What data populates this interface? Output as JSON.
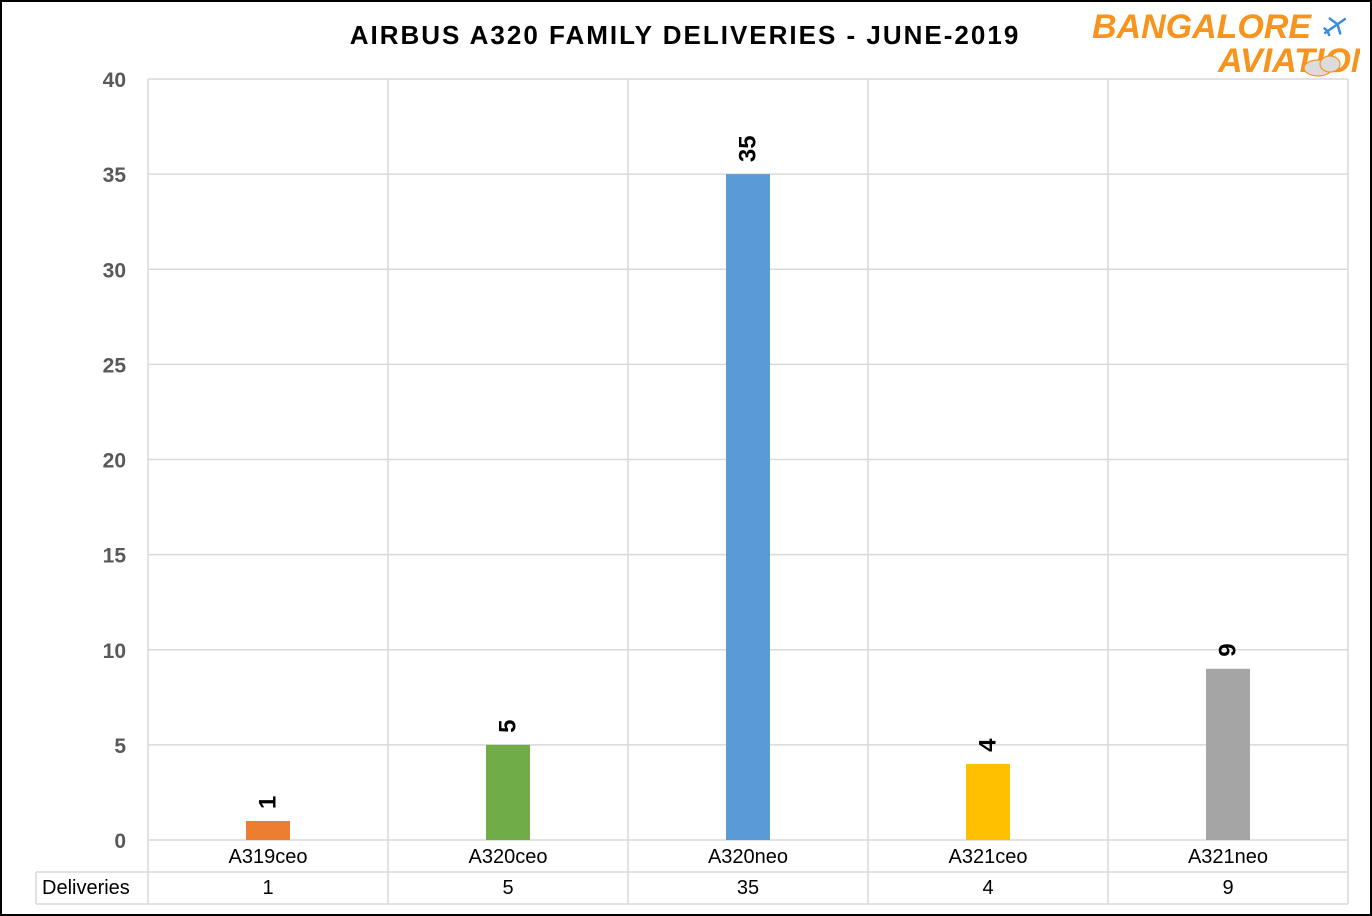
{
  "chart_data": {
    "type": "bar",
    "title": "AIRBUS A320 FAMILY DELIVERIES  - JUNE-2019",
    "categories": [
      "A319ceo",
      "A320ceo",
      "A320neo",
      "A321ceo",
      "A321neo"
    ],
    "values": [
      1,
      5,
      35,
      4,
      9
    ],
    "series_label": "Deliveries",
    "bar_colors": [
      "#ED7D31",
      "#70AD47",
      "#5B9BD5",
      "#FFC000",
      "#A5A5A5"
    ],
    "ylim": [
      0,
      40
    ],
    "yticks": [
      "0",
      "5",
      "10",
      "15",
      "20",
      "25",
      "30",
      "35",
      "40"
    ],
    "xlabel": "",
    "ylabel": "",
    "grid": true,
    "data_table": true
  },
  "logo": {
    "line1": "BANGALORE",
    "line2": "AVIATION",
    "accent_color": "#F7941D",
    "secondary_color": "#3A8DDE"
  }
}
